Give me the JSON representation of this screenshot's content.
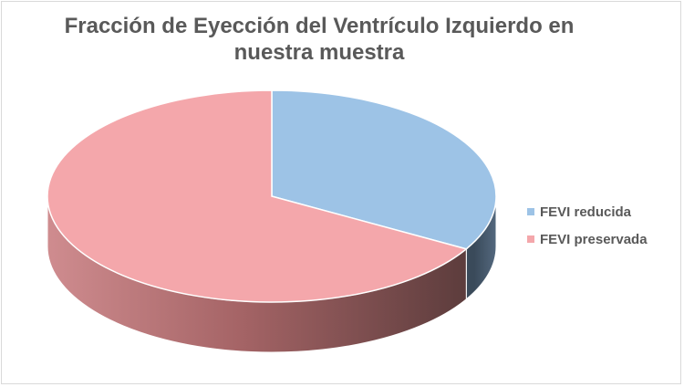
{
  "chart_data": {
    "type": "pie",
    "style": "3d",
    "title_lines": [
      "Fracción de Eyección del Ventrículo Izquierdo en",
      "nuestra muestra"
    ],
    "legend_placement": "right",
    "series": [
      {
        "name": "FEVI reducida",
        "value": 33.3,
        "color": "#9DC3E6"
      },
      {
        "name": "FEVI preservada",
        "value": 66.7,
        "color": "#F4A7AB"
      }
    ]
  }
}
